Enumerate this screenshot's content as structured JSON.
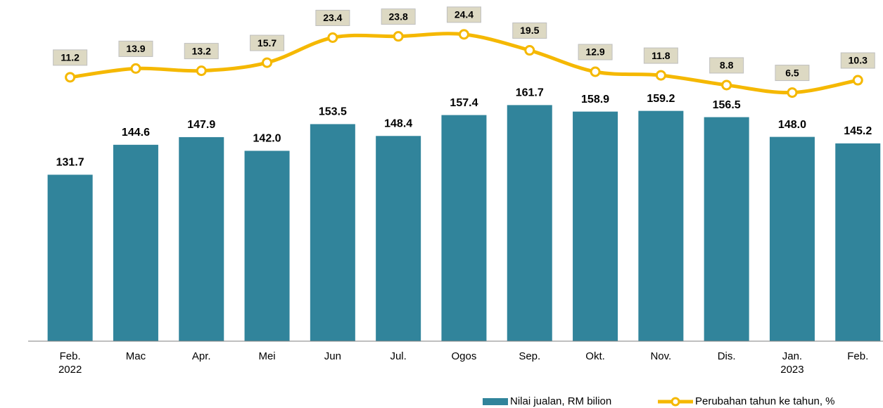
{
  "chart_data": {
    "type": "bar-line",
    "categories": [
      "Feb.\n2022",
      "Mac",
      "Apr.",
      "Mei",
      "Jun",
      "Jul.",
      "Ogos",
      "Sep.",
      "Okt.",
      "Nov.",
      "Dis.",
      "Jan.\n2023",
      "Feb."
    ],
    "series": [
      {
        "name": "Nilai jualan, RM bilion",
        "type": "bar",
        "color": "#31849b",
        "values": [
          131.7,
          144.6,
          147.9,
          142.0,
          153.5,
          148.4,
          157.4,
          161.7,
          158.9,
          159.2,
          156.5,
          148.0,
          145.2
        ],
        "value_labels": [
          "131.7",
          "144.6",
          "147.9",
          "142.0",
          "153.5",
          "148.4",
          "157.4",
          "161.7",
          "158.9",
          "159.2",
          "156.5",
          "148.0",
          "145.2"
        ]
      },
      {
        "name": "Perubahan tahun ke tahun, %",
        "type": "line",
        "axis": "y2",
        "color": "#f5b800",
        "values": [
          11.2,
          13.9,
          13.2,
          15.7,
          23.4,
          23.8,
          24.4,
          19.5,
          12.9,
          11.8,
          8.8,
          6.5,
          10.3
        ],
        "value_labels": [
          "11.2",
          "13.9",
          "13.2",
          "15.7",
          "23.4",
          "23.8",
          "24.4",
          "19.5",
          "12.9",
          "11.8",
          "8.8",
          "6.5",
          "10.3"
        ]
      }
    ],
    "ylim": [
      60,
      200
    ],
    "y2lim": [
      -70,
      30
    ],
    "legend": "bottom-right"
  }
}
